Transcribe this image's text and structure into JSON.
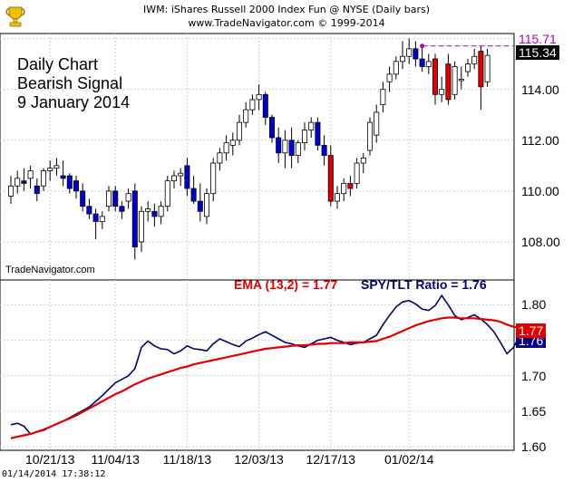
{
  "header": {
    "line1": "IWM:  iShares Russell 2000 Index Fun @ NYSE  (Daily bars)",
    "line2": "www.TradeNavigator.com © 1999-2014"
  },
  "annotation": [
    "Daily Chart",
    "Bearish Signal",
    "9 January 2014"
  ],
  "watermark": "TradeNavigator.com",
  "timestamp": "01/14/2014  17:38:12",
  "legend": {
    "ema_text": "EMA (13,2) = 1.77",
    "ratio_text": "SPY/TLT Ratio = 1.76",
    "ema_color": "#e00000",
    "ratio_color": "#00006e"
  },
  "colors": {
    "up_candle": "#0000d0",
    "down_candle": "#e00000",
    "grid": "#d0d0d0",
    "resistance_line": "#b000b0"
  },
  "chart_data": [
    {
      "type": "candlestick",
      "title": "IWM:  iShares Russell 2000 Index Fun @ NYSE  (Daily bars)",
      "ylim": [
        106.5,
        116.2
      ],
      "yticks": [
        108.0,
        110.0,
        112.0,
        114.0,
        116.0
      ],
      "last_price_tag": "115.34",
      "resistance_tag": "115.71",
      "resistance_level": 115.71,
      "grid": true,
      "ohlc": [
        [
          109.8,
          110.6,
          109.5,
          110.2
        ],
        [
          110.2,
          110.8,
          109.9,
          110.5
        ],
        [
          110.4,
          110.9,
          110.0,
          110.3
        ],
        [
          110.5,
          111.0,
          110.1,
          110.8
        ],
        [
          110.2,
          110.5,
          109.6,
          109.9
        ],
        [
          110.2,
          110.9,
          110.0,
          110.8
        ],
        [
          110.8,
          111.2,
          110.4,
          110.9
        ],
        [
          110.9,
          111.3,
          110.6,
          111.0
        ],
        [
          110.6,
          111.2,
          110.2,
          110.5
        ],
        [
          110.6,
          110.7,
          109.9,
          110.1
        ],
        [
          110.4,
          110.6,
          109.7,
          110.0
        ],
        [
          110.0,
          110.3,
          109.2,
          109.4
        ],
        [
          109.4,
          109.7,
          108.9,
          109.1
        ],
        [
          109.1,
          109.3,
          108.1,
          108.8
        ],
        [
          108.8,
          109.2,
          108.5,
          109.0
        ],
        [
          109.4,
          110.2,
          109.2,
          110.0
        ],
        [
          110.0,
          110.2,
          109.2,
          109.4
        ],
        [
          109.4,
          109.6,
          108.9,
          109.2
        ],
        [
          109.6,
          110.1,
          109.3,
          109.9
        ],
        [
          110.0,
          110.3,
          107.3,
          107.8
        ],
        [
          108.0,
          109.4,
          107.6,
          109.2
        ],
        [
          109.2,
          109.6,
          108.8,
          109.3
        ],
        [
          109.2,
          109.5,
          108.6,
          109.0
        ],
        [
          109.0,
          109.6,
          108.7,
          109.4
        ],
        [
          109.4,
          110.6,
          109.2,
          110.4
        ],
        [
          110.4,
          110.8,
          110.1,
          110.6
        ],
        [
          110.6,
          110.9,
          110.2,
          110.7
        ],
        [
          111.0,
          111.3,
          109.8,
          110.1
        ],
        [
          110.1,
          110.6,
          109.5,
          109.6
        ],
        [
          109.6,
          110.3,
          108.8,
          109.2
        ],
        [
          109.0,
          110.1,
          108.7,
          109.9
        ],
        [
          109.9,
          111.3,
          109.6,
          111.1
        ],
        [
          111.1,
          111.7,
          110.8,
          111.5
        ],
        [
          111.5,
          112.2,
          111.2,
          111.9
        ],
        [
          111.8,
          112.3,
          111.4,
          112.0
        ],
        [
          112.0,
          113.0,
          111.8,
          112.7
        ],
        [
          112.7,
          113.5,
          112.5,
          113.2
        ],
        [
          113.2,
          113.8,
          113.0,
          113.6
        ],
        [
          113.6,
          114.2,
          113.2,
          113.8
        ],
        [
          113.8,
          113.9,
          112.6,
          112.9
        ],
        [
          112.9,
          113.0,
          111.9,
          112.1
        ],
        [
          112.1,
          112.5,
          111.1,
          111.5
        ],
        [
          111.5,
          112.4,
          110.9,
          112.0
        ],
        [
          112.0,
          112.5,
          110.9,
          111.4
        ],
        [
          111.4,
          112.0,
          111.1,
          111.9
        ],
        [
          111.9,
          112.7,
          111.6,
          112.4
        ],
        [
          112.4,
          112.9,
          112.1,
          112.7
        ],
        [
          112.7,
          112.9,
          111.6,
          111.8
        ],
        [
          111.8,
          112.2,
          111.0,
          111.4
        ],
        [
          111.4,
          111.8,
          109.4,
          109.6
        ],
        [
          109.6,
          110.2,
          109.3,
          109.9
        ],
        [
          109.9,
          110.5,
          109.6,
          110.3
        ],
        [
          110.3,
          110.6,
          109.8,
          110.1
        ],
        [
          110.3,
          111.3,
          110.1,
          111.1
        ],
        [
          111.1,
          111.5,
          110.7,
          111.3
        ],
        [
          111.6,
          112.9,
          111.4,
          112.7
        ],
        [
          112.2,
          113.4,
          111.9,
          113.1
        ],
        [
          113.4,
          114.3,
          113.1,
          114.0
        ],
        [
          114.3,
          114.9,
          113.9,
          114.6
        ],
        [
          114.6,
          115.3,
          114.4,
          115.1
        ],
        [
          115.1,
          115.9,
          114.8,
          115.3
        ],
        [
          115.3,
          116.0,
          115.0,
          115.6
        ],
        [
          115.6,
          115.9,
          114.9,
          115.2
        ],
        [
          115.2,
          115.7,
          114.7,
          114.9
        ],
        [
          114.9,
          115.4,
          114.6,
          115.1
        ],
        [
          115.2,
          115.4,
          113.4,
          113.8
        ],
        [
          113.8,
          114.5,
          113.5,
          114.0
        ],
        [
          115.0,
          115.4,
          113.4,
          113.6
        ],
        [
          113.8,
          115.1,
          113.6,
          114.9
        ],
        [
          114.4,
          114.9,
          114.0,
          114.4
        ],
        [
          114.7,
          115.2,
          114.5,
          115.0
        ],
        [
          115.0,
          115.6,
          114.8,
          115.3
        ],
        [
          115.5,
          115.7,
          113.2,
          114.1
        ],
        [
          114.3,
          115.6,
          114.1,
          115.34
        ]
      ]
    },
    {
      "type": "line",
      "ylim": [
        1.595,
        1.835
      ],
      "yticks": [
        1.6,
        1.65,
        1.7,
        1.75,
        1.8
      ],
      "xticks": [
        "10/21/13",
        "11/04/13",
        "11/18/13",
        "12/03/13",
        "12/17/13",
        "01/02/14"
      ],
      "ema_tag": "1.77",
      "ratio_tag": "1.76",
      "grid": true,
      "series": [
        {
          "name": "SPY/TLT Ratio",
          "values": [
            1.631,
            1.633,
            1.629,
            1.618,
            1.621,
            1.623,
            1.628,
            1.632,
            1.636,
            1.641,
            1.646,
            1.651,
            1.656,
            1.664,
            1.672,
            1.681,
            1.69,
            1.695,
            1.7,
            1.71,
            1.74,
            1.749,
            1.742,
            1.738,
            1.737,
            1.731,
            1.735,
            1.742,
            1.738,
            1.737,
            1.735,
            1.745,
            1.752,
            1.748,
            1.744,
            1.741,
            1.749,
            1.753,
            1.758,
            1.762,
            1.757,
            1.752,
            1.747,
            1.745,
            1.742,
            1.74,
            1.745,
            1.75,
            1.752,
            1.754,
            1.75,
            1.747,
            1.744,
            1.746,
            1.747,
            1.752,
            1.757,
            1.772,
            1.785,
            1.797,
            1.804,
            1.806,
            1.801,
            1.794,
            1.792,
            1.799,
            1.813,
            1.8,
            1.785,
            1.779,
            1.782,
            1.786,
            1.78,
            1.772,
            1.762,
            1.747,
            1.731,
            1.74,
            1.757
          ]
        },
        {
          "name": "EMA (13,2)",
          "values": [
            1.612,
            1.614,
            1.616,
            1.618,
            1.621,
            1.624,
            1.628,
            1.632,
            1.636,
            1.64,
            1.644,
            1.649,
            1.654,
            1.659,
            1.664,
            1.669,
            1.674,
            1.678,
            1.683,
            1.688,
            1.692,
            1.696,
            1.699,
            1.702,
            1.705,
            1.708,
            1.711,
            1.713,
            1.716,
            1.718,
            1.72,
            1.722,
            1.724,
            1.726,
            1.728,
            1.73,
            1.732,
            1.734,
            1.736,
            1.738,
            1.739,
            1.74,
            1.741,
            1.742,
            1.743,
            1.743,
            1.744,
            1.745,
            1.745,
            1.746,
            1.746,
            1.746,
            1.747,
            1.747,
            1.747,
            1.748,
            1.749,
            1.752,
            1.755,
            1.759,
            1.763,
            1.767,
            1.771,
            1.774,
            1.777,
            1.779,
            1.781,
            1.782,
            1.782,
            1.781,
            1.781,
            1.781,
            1.78,
            1.779,
            1.778,
            1.776,
            1.772,
            1.769,
            1.768
          ]
        }
      ]
    }
  ]
}
